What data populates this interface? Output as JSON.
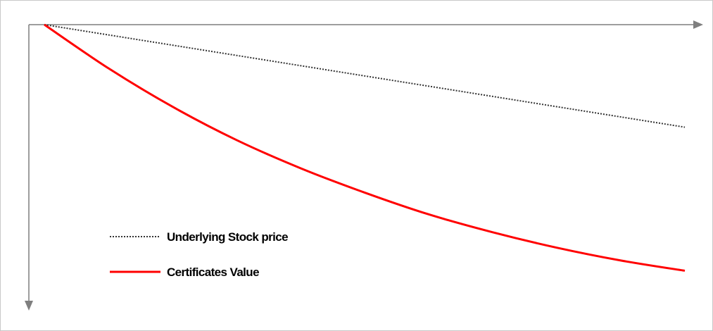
{
  "chart_data": {
    "type": "line",
    "title": "",
    "xlabel": "",
    "ylabel": "",
    "grid": false,
    "axes_ticks": "none",
    "x_axis_direction": "right",
    "y_axis_direction": "down",
    "legend_position": "lower-left",
    "x": [
      0,
      1,
      2,
      3,
      4,
      5,
      6,
      7,
      8,
      9,
      10
    ],
    "xlim": [
      0,
      10
    ],
    "ylim": [
      0,
      10
    ],
    "series": [
      {
        "name": "Underlying Stock price",
        "style": "dotted",
        "color": "#333333",
        "values": [
          0,
          0.4,
          0.8,
          1.2,
          1.6,
          2.0,
          2.4,
          2.8,
          3.2,
          3.6,
          4.0
        ]
      },
      {
        "name": "Certificates Value",
        "style": "solid",
        "color": "#ff0000",
        "values": [
          0,
          1.7,
          3.2,
          4.5,
          5.6,
          6.55,
          7.4,
          8.1,
          8.7,
          9.2,
          9.6
        ]
      }
    ]
  },
  "colors": {
    "axis": "#7f7f7f",
    "frame": "#c8c8c8",
    "background": "#ffffff"
  }
}
